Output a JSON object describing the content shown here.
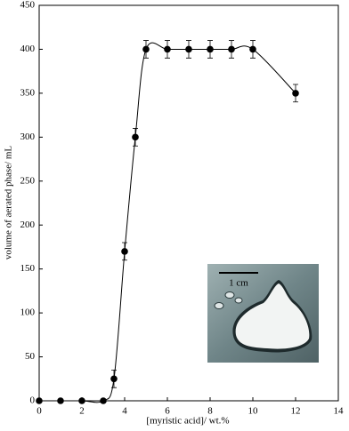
{
  "chart_data": {
    "type": "line",
    "x_label": "[myristic acid]/ wt.%",
    "y_label": "volume of aerated phase/ mL",
    "x": [
      0,
      1,
      2,
      3,
      3.5,
      4,
      4.5,
      5,
      6,
      7,
      8,
      9,
      10,
      12
    ],
    "series": [
      {
        "color": "#000000",
        "values": [
          0,
          0,
          0,
          0,
          25,
          170,
          300,
          400,
          400,
          400,
          400,
          400,
          400,
          350
        ],
        "errors": [
          null,
          null,
          null,
          null,
          10,
          10,
          10,
          10,
          10,
          10,
          10,
          10,
          10,
          10
        ]
      }
    ],
    "xlim": [
      0,
      14
    ],
    "xticks": [
      0,
      2,
      4,
      6,
      8,
      10,
      12,
      14
    ],
    "ylim": [
      0,
      450
    ],
    "yticks": [
      0,
      50,
      100,
      150,
      200,
      250,
      300,
      350,
      400,
      450
    ],
    "grid": false,
    "inset_label": "1 cm"
  }
}
